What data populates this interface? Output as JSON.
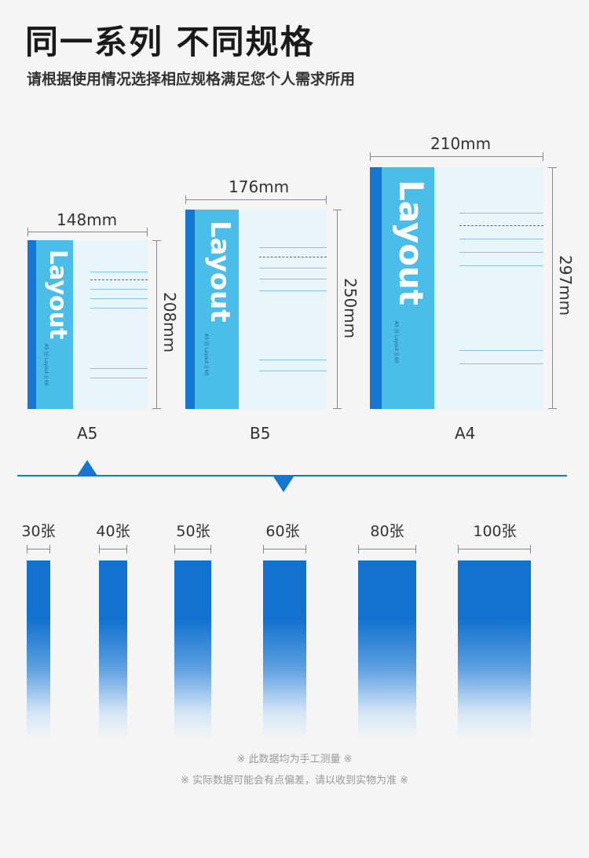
{
  "header": {
    "title": "同一系列 不同规格",
    "subtitle": "请根据使用情况选择相应规格满足您个人需求所用"
  },
  "notebooks": [
    {
      "name": "A5",
      "width": "148mm",
      "height": "208mm",
      "brand": "Layout",
      "spine_text": "A5 ||| Layout || 60"
    },
    {
      "name": "B5",
      "width": "176mm",
      "height": "250mm",
      "brand": "Layout",
      "spine_text": "A5 ||| Layout || 60"
    },
    {
      "name": "A4",
      "width": "210mm",
      "height": "297mm",
      "brand": "Layout",
      "spine_text": "A5 ||| Layout || 60"
    }
  ],
  "sheet_counts": [
    "30张",
    "40张",
    "50张",
    "60张",
    "80张",
    "100张"
  ],
  "notes": [
    "※ 此数据均为手工测量 ※",
    "※ 实际数据可能会有点偏差，请以收到实物为准 ※"
  ],
  "colors": {
    "accent": "#1677d2",
    "cover": "#4bbde9",
    "page": "#e8f5fa",
    "background": "#f5f5f5"
  }
}
